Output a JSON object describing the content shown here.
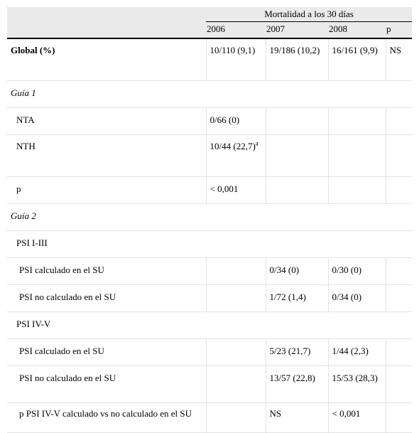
{
  "header": {
    "group_label": "Mortalidad a los 30 días",
    "years": [
      "2006",
      "2007",
      "2008"
    ],
    "p_label": "p"
  },
  "rows": [
    {
      "label": "Global (%)",
      "c2006": "10/110 (9,1)",
      "c2007": "19/186 (10,2)",
      "c2008": "16/161 (9,9)",
      "p": "NS"
    },
    {
      "label": "Guía 1"
    },
    {
      "label": "NTA",
      "c2006": "0/66 (0)"
    },
    {
      "label": "NTH",
      "c2006": "10/44 (22,7)",
      "c2006_sup": "a"
    },
    {
      "label": "p",
      "c2006": "< 0,001"
    },
    {
      "label": "Guía 2"
    },
    {
      "label": "PSI I-III"
    },
    {
      "label": "PSI calculado en el SU",
      "c2007": "0/34 (0)",
      "c2008": "0/30 (0)"
    },
    {
      "label": "PSI no calculado en el SU",
      "c2007": "1/72 (1,4)",
      "c2008": "0/34 (0)"
    },
    {
      "label": "PSI IV-V"
    },
    {
      "label": "PSI calculado en el SU",
      "c2007": "5/23 (21,7)",
      "c2008": "1/44 (2,3)"
    },
    {
      "label": "PSI no calculado en el SU",
      "c2007": "13/57 (22,8)",
      "c2008": "15/53 (28,3)"
    },
    {
      "label": "p PSI IV-V calculado vs no calculado en el SU",
      "c2007": "NS",
      "c2008": "< 0,001"
    }
  ]
}
